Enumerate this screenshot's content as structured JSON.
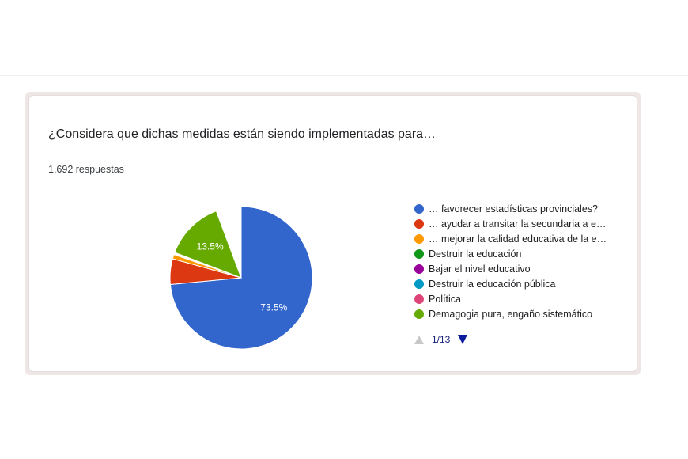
{
  "question": "¿Considera que dichas medidas están siendo implementadas para…",
  "responses": "1,692 respuestas",
  "pager": {
    "page": "1/13",
    "prev_icon": "triangle-up-icon",
    "next_icon": "triangle-down-icon"
  },
  "chart_data": {
    "type": "pie",
    "title": "¿Considera que dichas medidas están siendo implementadas para…",
    "legend_position": "right",
    "slices": [
      {
        "label": "… favorecer estadísticas provinciales?",
        "value": 73.5,
        "color": "#3366cc",
        "data_label": "73.5%"
      },
      {
        "label": "… ayudar a transitar la secundaria a e…",
        "value": 5.8,
        "color": "#dc3912",
        "data_label": ""
      },
      {
        "label": "… mejorar la calidad educativa de la e…",
        "value": 1.0,
        "color": "#ff9900",
        "data_label": ""
      },
      {
        "label": "Destruir la educación",
        "value": 0.1,
        "color": "#109618",
        "data_label": ""
      },
      {
        "label": "Bajar el nivel educativo",
        "value": 0.1,
        "color": "#990099",
        "data_label": ""
      },
      {
        "label": "Destruir la educación pública",
        "value": 0.1,
        "color": "#0099c6",
        "data_label": ""
      },
      {
        "label": "Política",
        "value": 0.1,
        "color": "#dd4477",
        "data_label": ""
      },
      {
        "label": "Demagogia pura, engaño sistemático",
        "value": 0.1,
        "color": "#66aa00",
        "data_label": ""
      },
      {
        "label": "",
        "value": 13.5,
        "color": "#66aa00",
        "data_label": "13.5%"
      },
      {
        "label": "",
        "value": 5.7,
        "color": "#ffffff",
        "data_label": ""
      }
    ],
    "legend_entries": [
      {
        "label": "… favorecer estadísticas provinciales?",
        "color": "#3366cc"
      },
      {
        "label": "… ayudar a transitar la secundaria a e…",
        "color": "#dc3912"
      },
      {
        "label": "… mejorar la calidad educativa de la e…",
        "color": "#ff9900"
      },
      {
        "label": "Destruir la educación",
        "color": "#109618"
      },
      {
        "label": "Bajar el nivel educativo",
        "color": "#990099"
      },
      {
        "label": "Destruir la educación pública",
        "color": "#0099c6"
      },
      {
        "label": "Política",
        "color": "#dd4477"
      },
      {
        "label": "Demagogia pura, engaño sistemático",
        "color": "#66aa00"
      }
    ]
  }
}
